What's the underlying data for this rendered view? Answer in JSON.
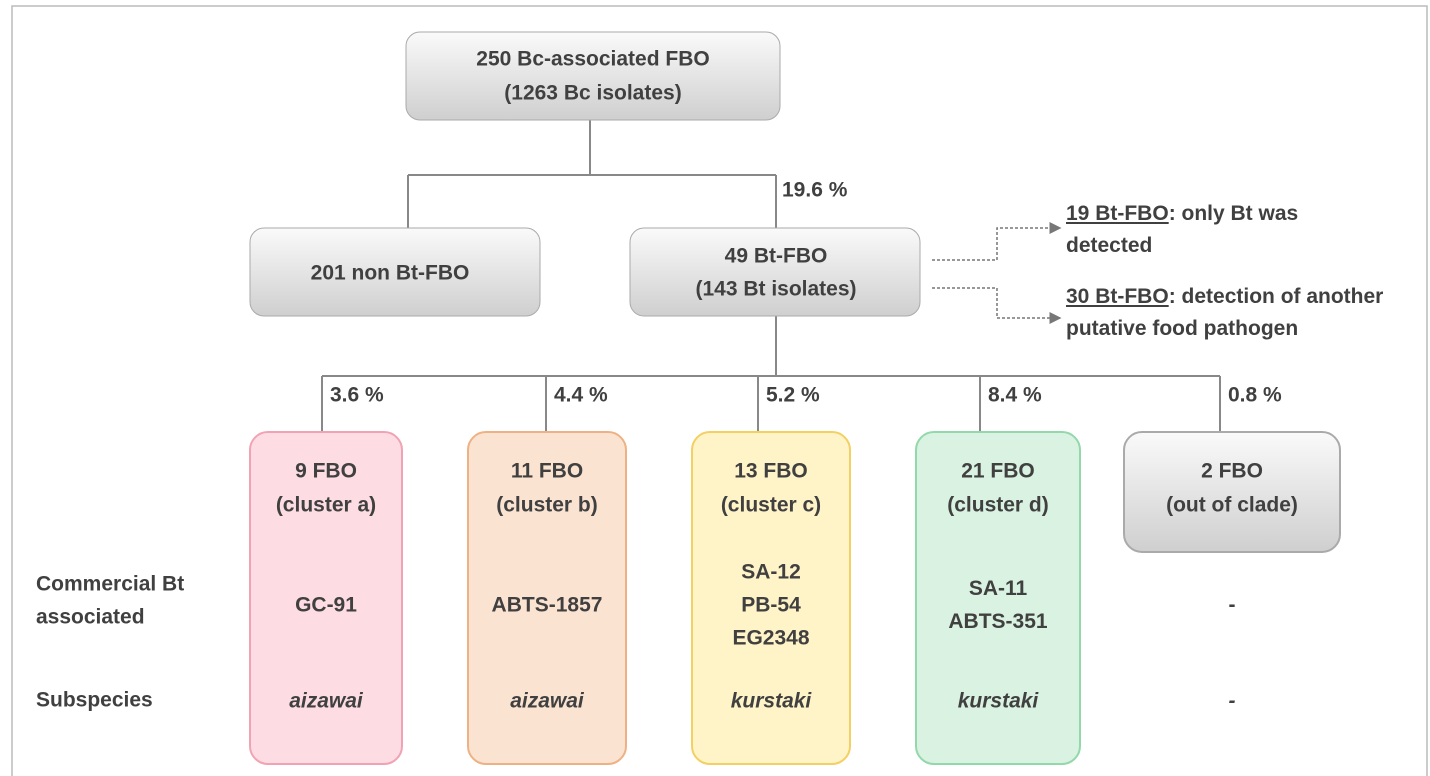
{
  "root": {
    "lines": [
      "250 Bc-associated FBO",
      "(1263 Bc isolates)"
    ]
  },
  "left": {
    "lines": [
      "201 non Bt-FBO"
    ]
  },
  "right": {
    "lines": [
      "49 Bt-FBO",
      "(143 Bt isolates)"
    ],
    "percent": "19.6 %"
  },
  "notes": [
    {
      "underlined": "19 Bt-FBO",
      "lines": [
        ": only Bt was",
        "detected"
      ]
    },
    {
      "underlined": "30 Bt-FBO",
      "lines": [
        ": detection of another",
        "putative food pathogen"
      ]
    }
  ],
  "row_labels": {
    "commercial": [
      "Commercial Bt",
      "associated"
    ],
    "subspecies": "Subspecies"
  },
  "clusters": [
    {
      "percent": "3.6 %",
      "lines": [
        "9 FBO",
        "(cluster a)"
      ],
      "commercial": [
        "GC-91"
      ],
      "subspecies": "aizawai"
    },
    {
      "percent": "4.4 %",
      "lines": [
        "11 FBO",
        "(cluster b)"
      ],
      "commercial": [
        "ABTS-1857"
      ],
      "subspecies": "aizawai"
    },
    {
      "percent": "5.2 %",
      "lines": [
        "13 FBO",
        "(cluster c)"
      ],
      "commercial": [
        "SA-12",
        "PB-54",
        "EG2348"
      ],
      "subspecies": "kurstaki"
    },
    {
      "percent": "8.4 %",
      "lines": [
        "21 FBO",
        "(cluster d)"
      ],
      "commercial": [
        "SA-11",
        "ABTS-351"
      ],
      "subspecies": "kurstaki"
    },
    {
      "percent": "0.8 %",
      "lines": [
        "2 FBO",
        "(out of clade)"
      ],
      "commercial": [
        "-"
      ],
      "subspecies": "-"
    }
  ]
}
